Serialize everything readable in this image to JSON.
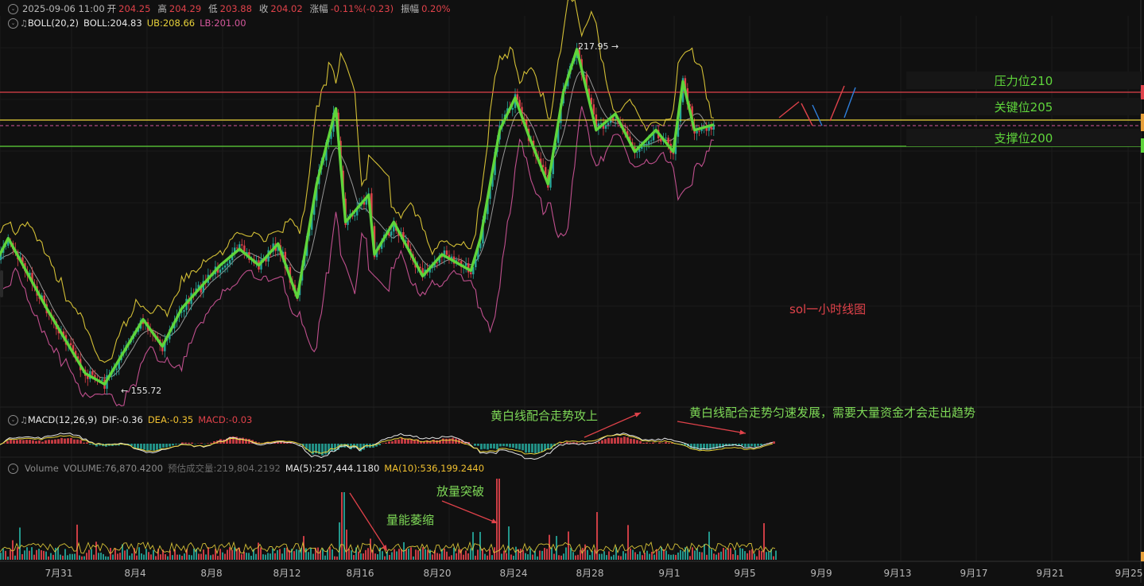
{
  "header": {
    "datetime": "2025-09-06 11:00",
    "open_label": "开",
    "open": "204.25",
    "high_label": "高",
    "high": "204.29",
    "low_label": "低",
    "low": "203.88",
    "close_label": "收",
    "close": "204.02",
    "change_label": "涨幅",
    "change": "-0.11%(-0.23)",
    "amplitude_label": "振幅",
    "amplitude": "0.20%"
  },
  "boll": {
    "name": "BOLL(20,2)",
    "mid": "BOLL:204.83",
    "ub": "UB:208.66",
    "lb": "LB:201.00"
  },
  "macd": {
    "name": "MACD(12,26,9)",
    "dif": "DIF:-0.36",
    "dea": "DEA:-0.35",
    "macd": "MACD:-0.03"
  },
  "volume": {
    "name": "Volume",
    "volume": "VOLUME:76,870.4200",
    "est": "预估成交量:219,804.2192",
    "ma5": "MA(5):257,444.1180",
    "ma10": "MA(10):536,199.2440"
  },
  "levels": {
    "resistance": "压力位210",
    "key": "关键位205",
    "support": "支撑位200"
  },
  "annotations": {
    "chart_name": "sol一小时线图",
    "macd_up": "黄白线配合走势攻上",
    "macd_steady": "黄白线配合走势匀速发展，需要大量资金才会走出趋势",
    "vol_breakout": "放量突破",
    "vol_shrink": "量能萎缩",
    "high_marker": "217.95",
    "low_marker": "155.72"
  },
  "colors": {
    "up": "#26a69a",
    "down": "#e0424a",
    "zigzag": "#5fd53b",
    "ub": "#e8d23a",
    "lb": "#d3579b",
    "mid": "#d0d0d0",
    "resistance_line": "#e0424a",
    "key_line": "#e8d23a",
    "support_line": "#5fd53b"
  },
  "chart_data": {
    "type": "line",
    "series": [
      {
        "name": "",
        "points": [
          [
            "7月28",
            176
          ],
          [
            "7月29",
            183
          ],
          [
            "7月31",
            170
          ],
          [
            "8月2",
            158
          ],
          [
            "8月3",
            156
          ],
          [
            "8月5",
            168
          ],
          [
            "8月6",
            163
          ],
          [
            "8月7",
            170
          ],
          [
            "8月9",
            178
          ],
          [
            "8月10",
            181
          ],
          [
            "8月11",
            178
          ],
          [
            "8月12",
            182
          ],
          [
            "8月13",
            172
          ],
          [
            "8月14",
            193
          ],
          [
            "8月15",
            207
          ],
          [
            "8月16",
            186
          ],
          [
            "8月17",
            191
          ],
          [
            "8月18",
            180
          ],
          [
            "8月19",
            186
          ],
          [
            "8月20",
            176
          ],
          [
            "8月21",
            180
          ],
          [
            "8月22",
            177
          ],
          [
            "8月23",
            183
          ],
          [
            "8月24",
            203
          ],
          [
            "8月25",
            209
          ],
          [
            "8月26",
            202
          ],
          [
            "8月27",
            193
          ],
          [
            "8月28",
            210
          ],
          [
            "8月29",
            217.95
          ],
          [
            "8月30",
            203
          ],
          [
            "8月31",
            206
          ],
          [
            "9月1",
            199
          ],
          [
            "9月2",
            203
          ],
          [
            "9月3",
            199
          ],
          [
            "9月4",
            212
          ],
          [
            "9月5",
            203
          ],
          [
            "9月6",
            204
          ]
        ]
      }
    ],
    "levels": [
      200,
      205,
      210
    ],
    "high": 217.95,
    "low": 155.72,
    "x_tick_labels": [
      "7月31",
      "8月4",
      "8月8",
      "8月12",
      "8月16",
      "8月20",
      "8月24",
      "8月28",
      "9月1",
      "9月5",
      "9月9",
      "9月13",
      "9月17",
      "9月21",
      "9月25"
    ],
    "ylim": [
      148,
      222
    ],
    "grid": true
  }
}
